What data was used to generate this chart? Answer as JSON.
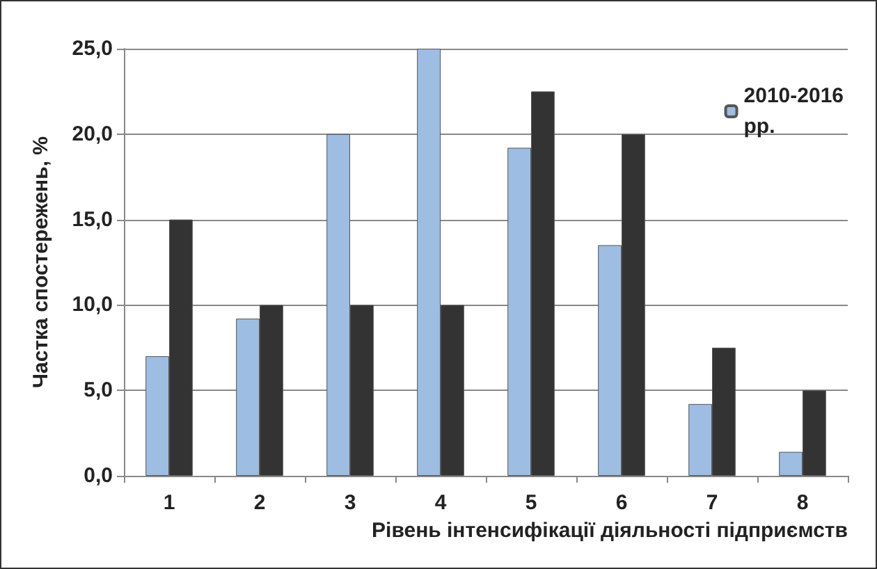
{
  "chart_data": {
    "type": "bar",
    "xlabel": "Рівень інтенсифікації діяльності підприємств",
    "ylabel": "Частка спостережень, %",
    "categories": [
      "1",
      "2",
      "3",
      "4",
      "5",
      "6",
      "7",
      "8"
    ],
    "series": [
      {
        "name": "2010-2016 рр.",
        "color": "#9dbde3",
        "values": [
          7.0,
          9.2,
          20.0,
          25.0,
          19.2,
          13.5,
          4.2,
          1.4
        ]
      },
      {
        "color": "#333333",
        "values": [
          15.0,
          10.0,
          10.0,
          10.0,
          22.5,
          20.0,
          7.5,
          5.0
        ]
      }
    ],
    "ylim": [
      0,
      25
    ],
    "yticks": [
      {
        "value": 0,
        "label": "0,0"
      },
      {
        "value": 5,
        "label": "5,0"
      },
      {
        "value": 10,
        "label": "10,0"
      },
      {
        "value": 15,
        "label": "15,0"
      },
      {
        "value": 20,
        "label": "20,0"
      },
      {
        "value": 25,
        "label": "25,0"
      }
    ],
    "grid": "y",
    "legend": "top right"
  }
}
